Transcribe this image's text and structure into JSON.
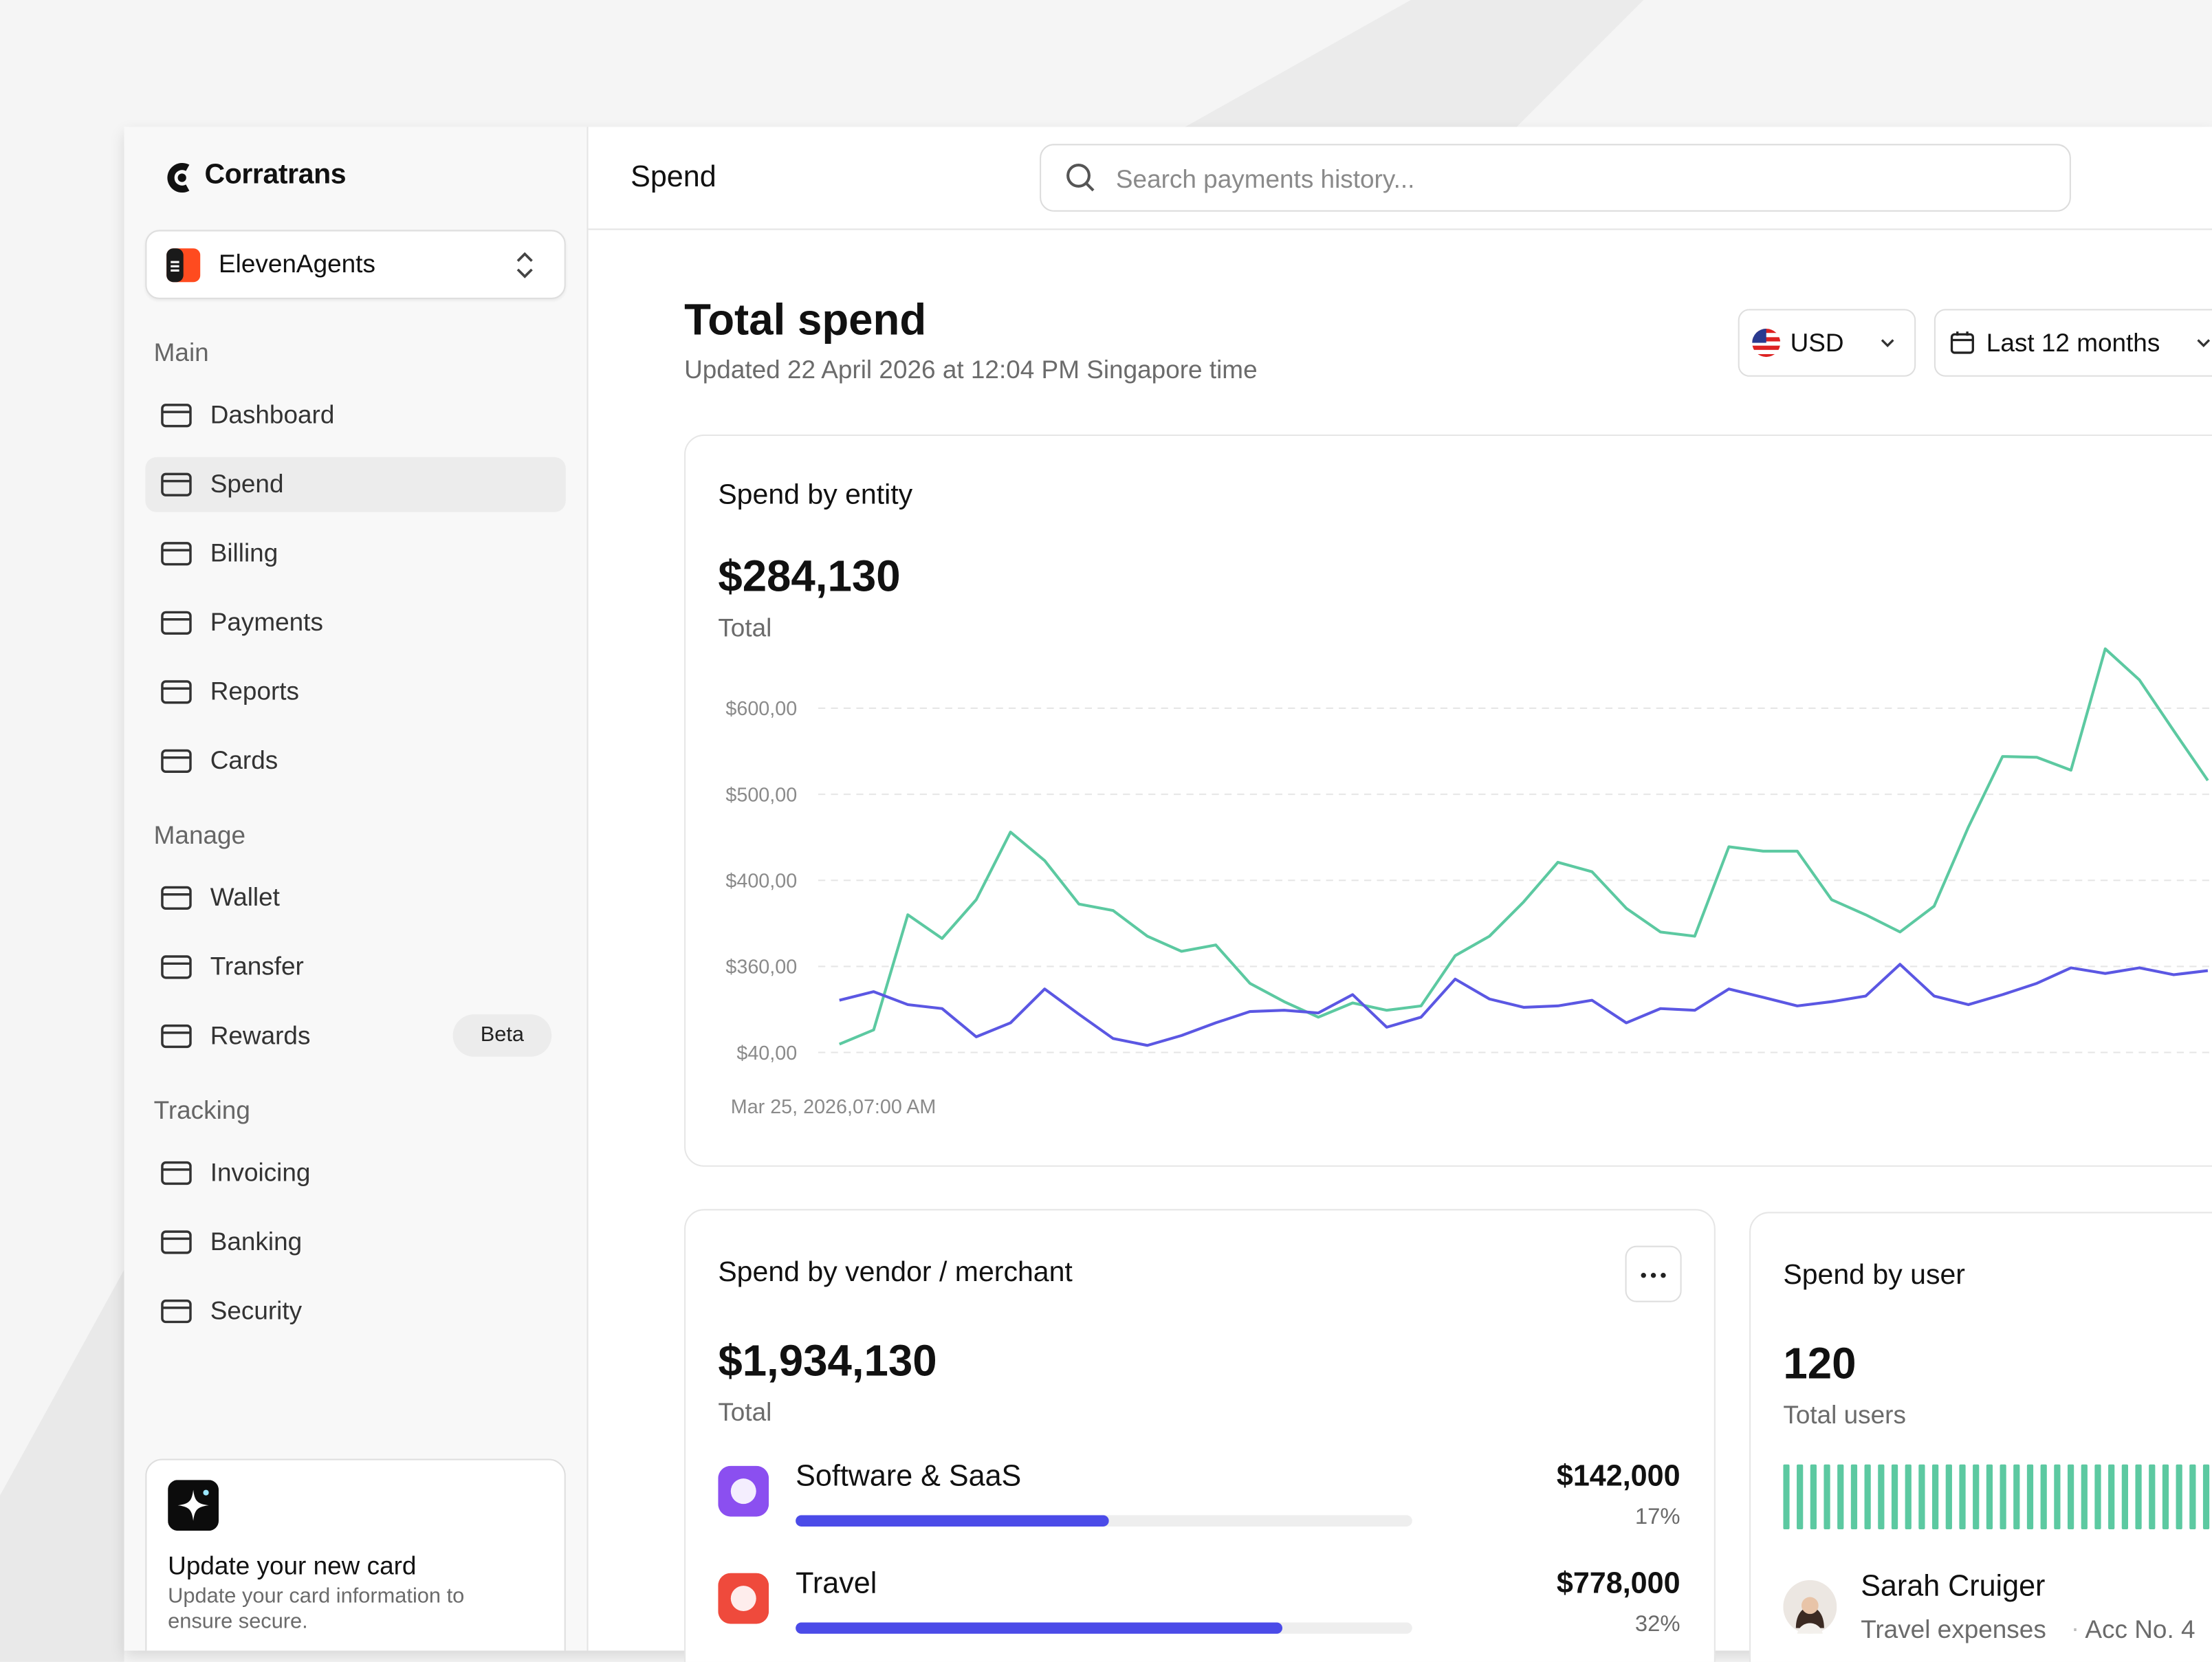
{
  "brand": "Corratrans",
  "workspace": "ElevenAgents",
  "nav": [
    {
      "section": "Main",
      "items": [
        "Dashboard",
        "Spend",
        "Billing",
        "Payments",
        "Reports",
        "Cards"
      ]
    },
    {
      "section": "Manage",
      "items": [
        "Wallet",
        "Transfer",
        "Rewards"
      ]
    },
    {
      "section": "Tracking",
      "items": [
        "Invoicing",
        "Banking",
        "Security"
      ]
    }
  ],
  "rewards_badge": "Beta",
  "promo": {
    "title": "Update your new card",
    "text": "Update your card information to ensure secure."
  },
  "header": {
    "title": "Spend",
    "search_placeholder": "Search payments history..."
  },
  "page": {
    "title": "Total spend",
    "subtitle": "Updated 22 April 2026 at 12:04 PM Singapore time",
    "currency": "USD",
    "range": "Last 12 months"
  },
  "entity_card": {
    "title": "Spend by entity",
    "total": "$284,130",
    "total_label": "Total"
  },
  "chart_data": {
    "type": "line",
    "categories": [
      "Mar 25, 2026,07:00 AM",
      null,
      null,
      null,
      null,
      null,
      null,
      null,
      null,
      null,
      null,
      null,
      null,
      null,
      null,
      null,
      null,
      null,
      null,
      null,
      null,
      null,
      null,
      null,
      null,
      null,
      null,
      null,
      null,
      null,
      null,
      null,
      null,
      null,
      null,
      null,
      null,
      null,
      null,
      null,
      null
    ],
    "series": [
      {
        "color": "#5cc9a1",
        "values": [
          71,
          124,
          384,
          373,
          391,
          456,
          423,
          389,
          386,
          374,
          367,
          370,
          297,
          229,
          171,
          224,
          197,
          213,
          365,
          374,
          390,
          421,
          410,
          387,
          376,
          374,
          439,
          434,
          434,
          391,
          384,
          376,
          388,
          462,
          544,
          543,
          528,
          669,
          633,
          574,
          516
        ]
      },
      {
        "color": "#5b57e3",
        "values": [
          234,
          266,
          218,
          203,
          98,
          150,
          276,
          182,
          92,
          66,
          103,
          150,
          192,
          197,
          187,
          255,
          134,
          171,
          313,
          239,
          208,
          213,
          234,
          150,
          203,
          197,
          276,
          245,
          213,
          229,
          250,
          361,
          250,
          218,
          255,
          297,
          355,
          334,
          355,
          329,
          344
        ]
      }
    ],
    "ylim": [
      40,
      700
    ],
    "yticks": [
      {
        "value": 600,
        "label": "$600,00"
      },
      {
        "value": 500,
        "label": "$500,00"
      },
      {
        "value": 400,
        "label": "$400,00"
      },
      {
        "value": 360,
        "label": "$360,00"
      },
      {
        "value": 40,
        "label": "$40,00"
      }
    ],
    "grid": true
  },
  "vendor_card": {
    "title": "Spend by vendor / merchant",
    "total": "$1,934,130",
    "total_label": "Total",
    "rows": [
      {
        "name": "Software & SaaS",
        "amount": "$142,000",
        "share": "17%"
      },
      {
        "name": "Travel",
        "amount": "$778,000",
        "share": "32%"
      }
    ]
  },
  "user_card": {
    "title": "Spend by user",
    "total": "120",
    "total_label": "Total users",
    "user": {
      "name": "Sarah Cruiger",
      "role": "Travel expenses",
      "account": "Acc No. 4"
    }
  }
}
